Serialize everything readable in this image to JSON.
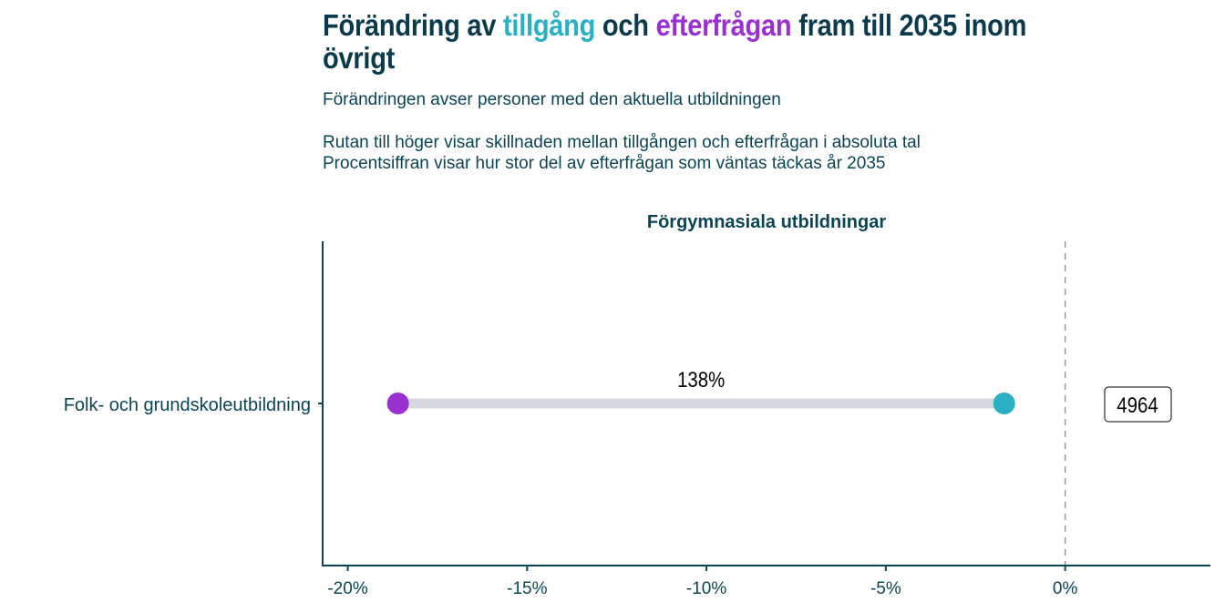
{
  "title": {
    "part1": "Förändring av ",
    "supply": "tillgång",
    "part2": " och ",
    "demand": "efterfrågan",
    "part3": " fram till 2035 inom övrigt"
  },
  "subtitle": "Förändringen avser personer med den aktuella utbildningen",
  "notes": [
    "Rutan till höger visar skillnaden mellan tillgången och efterfrågan i absoluta tal",
    "Procentsiffran visar hur stor del av efterfrågan som väntas täckas år 2035"
  ],
  "colors": {
    "supply": "#29b0c4",
    "demand": "#9b30d0",
    "segment": "#d5d8dc",
    "text": "#0b4455"
  },
  "chart_data": {
    "type": "dumbbell",
    "facet_title": "Förgymnasiala utbildningar",
    "categories": [
      "Folk- och grundskoleutbildning"
    ],
    "series": [
      {
        "name": "tillgång",
        "values": [
          -1.7
        ]
      },
      {
        "name": "efterfrågan",
        "values": [
          -18.6
        ]
      }
    ],
    "coverage_labels": [
      "138%"
    ],
    "difference_labels": [
      "4964"
    ],
    "xlim": [
      -20.7,
      4.05
    ],
    "xticks": [
      -20,
      -15,
      -10,
      -5,
      0
    ],
    "xtick_labels": [
      "-20%",
      "-15%",
      "-10%",
      "-5%",
      "0%"
    ],
    "reference_line": 0
  }
}
